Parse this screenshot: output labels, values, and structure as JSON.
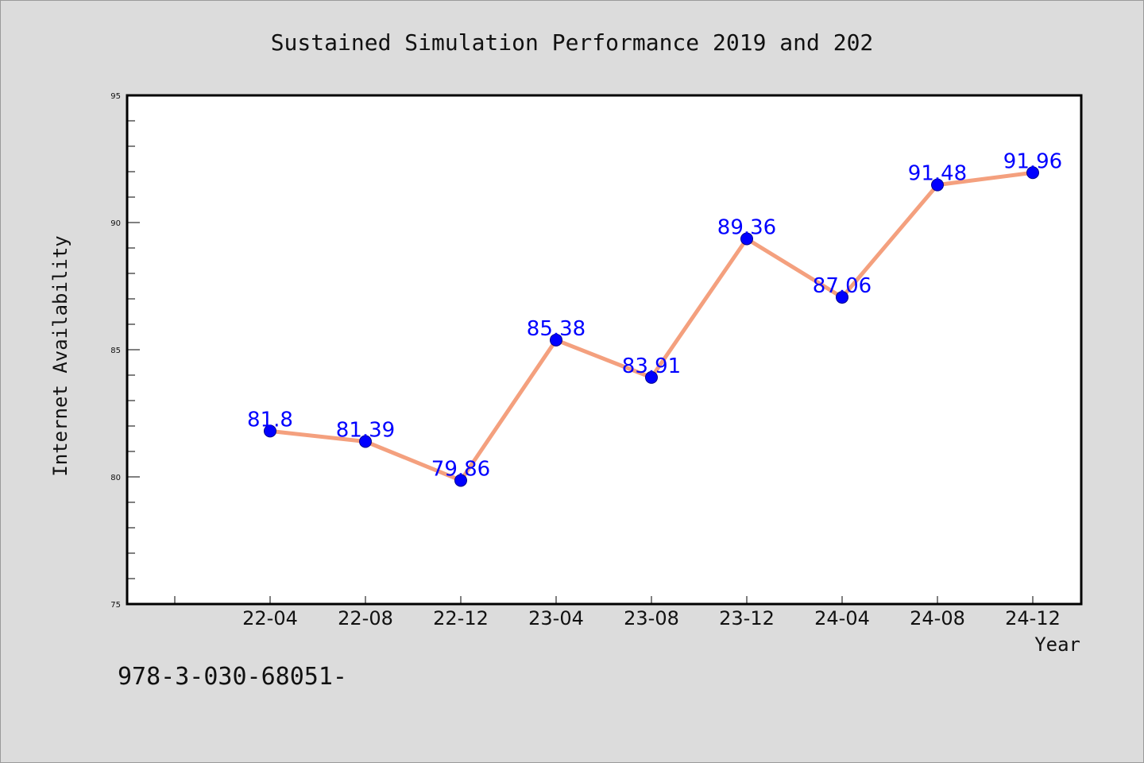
{
  "chart_data": {
    "type": "line",
    "title": "Sustained Simulation Performance 2019 and 202",
    "xlabel": "Year",
    "ylabel": "Internet Availability",
    "categories": [
      "22-04",
      "22-08",
      "22-12",
      "23-04",
      "23-08",
      "23-12",
      "24-04",
      "24-08",
      "24-12"
    ],
    "values": [
      81.8,
      81.39,
      79.86,
      85.38,
      83.91,
      89.36,
      87.06,
      91.48,
      91.96
    ],
    "data_labels": [
      "81.8",
      "81.39",
      "79.86",
      "85.38",
      "83.91",
      "89.36",
      "87.06",
      "91.48",
      "91.96"
    ],
    "ylim": [
      75,
      95
    ],
    "yticks": [
      "75",
      "80",
      "85",
      "90",
      "95"
    ],
    "grid": false,
    "legend": "none",
    "line_color": "#f4a07e",
    "marker_color": "#0000ff",
    "label_color": "#0000ff"
  },
  "footnote": "978-3-030-68051-"
}
